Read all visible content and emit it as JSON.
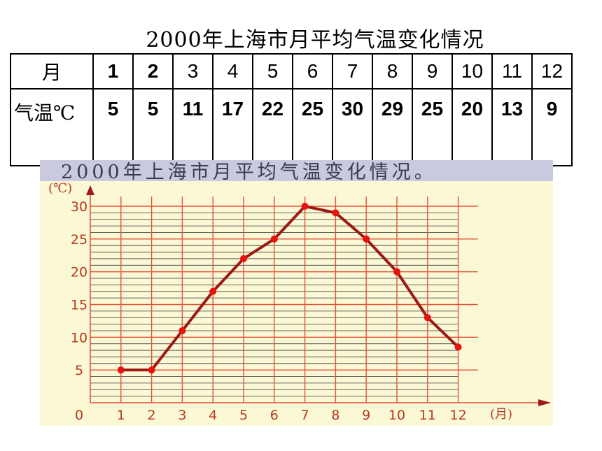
{
  "title": "2000年上海市月平均气温变化情况",
  "table": {
    "row_month_label": "月",
    "row_temp_label": "气温℃",
    "months": [
      "1",
      "2",
      "3",
      "4",
      "5",
      "6",
      "7",
      "8",
      "9",
      "10",
      "11",
      "12"
    ],
    "temps": [
      "5",
      "5",
      "11",
      "17",
      "22",
      "25",
      "30",
      "29",
      "25",
      "20",
      "13",
      "9"
    ]
  },
  "chart_data": {
    "type": "line",
    "title": "2000年上海市月平均气温变化情况。",
    "ylabel": "(℃)",
    "xlabel": "(月)",
    "origin_label": "0",
    "categories": [
      "1",
      "2",
      "3",
      "4",
      "5",
      "6",
      "7",
      "8",
      "9",
      "10",
      "11",
      "12"
    ],
    "values": [
      5,
      5,
      11,
      17,
      22,
      25,
      30,
      29,
      25,
      20,
      13,
      8.5
    ],
    "y_ticks": [
      "5",
      "10",
      "15",
      "20",
      "25",
      "30"
    ],
    "ylim": [
      0,
      30
    ],
    "grid": true,
    "colors": {
      "line": "#9b1a14",
      "point": "#e8120f",
      "grid": "#e2533b",
      "minor_grid": "#333333",
      "tick_text": "#b83a1e",
      "title_text": "#3a3a55",
      "title_band": "#c9c9e0",
      "panel": "#fbf8d6"
    }
  }
}
